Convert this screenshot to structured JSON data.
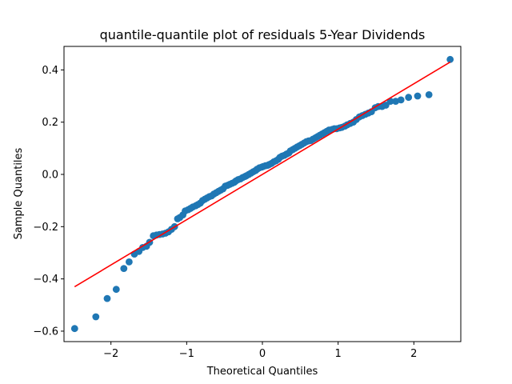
{
  "chart_data": {
    "type": "scatter",
    "title": "quantile-quantile plot of residuals 5-Year Dividends",
    "xlabel": "Theoretical Quantiles",
    "ylabel": "Sample Quantiles",
    "xlim": [
      -2.62,
      2.62
    ],
    "ylim": [
      -0.64,
      0.49
    ],
    "xticks": [
      -2,
      -1,
      0,
      1,
      2
    ],
    "xtick_labels": [
      "−2",
      "−1",
      "0",
      "1",
      "2"
    ],
    "yticks": [
      -0.6,
      -0.4,
      -0.2,
      0.0,
      0.2,
      0.4
    ],
    "ytick_labels": [
      "−0.6",
      "−0.4",
      "−0.2",
      "0.0",
      "0.2",
      "0.4"
    ],
    "grid": false,
    "colors": {
      "points": "#1f77b4",
      "line": "#ff0000"
    },
    "series": [
      {
        "kind": "points",
        "x": [
          -2.48,
          -2.2,
          -2.05,
          -1.93,
          -1.83,
          -1.76,
          -1.69,
          -1.63,
          -1.58,
          -1.53,
          -1.49,
          -1.44,
          -1.4,
          -1.36,
          -1.32,
          -1.28,
          -1.24,
          -1.2,
          -1.16,
          -1.12,
          -1.09,
          -1.05,
          -1.02,
          -0.98,
          -0.95,
          -0.92,
          -0.88,
          -0.85,
          -0.82,
          -0.79,
          -0.76,
          -0.73,
          -0.7,
          -0.67,
          -0.64,
          -0.61,
          -0.58,
          -0.55,
          -0.52,
          -0.49,
          -0.46,
          -0.43,
          -0.4,
          -0.37,
          -0.35,
          -0.32,
          -0.29,
          -0.26,
          -0.23,
          -0.21,
          -0.18,
          -0.15,
          -0.12,
          -0.09,
          -0.07,
          -0.04,
          -0.01,
          0.01,
          0.04,
          0.07,
          0.09,
          0.12,
          0.15,
          0.18,
          0.21,
          0.23,
          0.26,
          0.29,
          0.32,
          0.35,
          0.37,
          0.4,
          0.43,
          0.46,
          0.49,
          0.52,
          0.55,
          0.58,
          0.61,
          0.64,
          0.67,
          0.7,
          0.73,
          0.76,
          0.79,
          0.82,
          0.85,
          0.88,
          0.92,
          0.95,
          0.98,
          1.02,
          1.05,
          1.09,
          1.12,
          1.16,
          1.2,
          1.24,
          1.28,
          1.32,
          1.36,
          1.4,
          1.44,
          1.49,
          1.53,
          1.58,
          1.63,
          1.69,
          1.76,
          1.83,
          1.93,
          2.05,
          2.2,
          2.48
        ],
        "y": [
          -0.59,
          -0.545,
          -0.475,
          -0.44,
          -0.36,
          -0.335,
          -0.305,
          -0.295,
          -0.28,
          -0.275,
          -0.26,
          -0.235,
          -0.232,
          -0.23,
          -0.228,
          -0.225,
          -0.22,
          -0.21,
          -0.2,
          -0.17,
          -0.165,
          -0.155,
          -0.14,
          -0.135,
          -0.13,
          -0.125,
          -0.12,
          -0.115,
          -0.11,
          -0.1,
          -0.095,
          -0.09,
          -0.085,
          -0.082,
          -0.075,
          -0.07,
          -0.065,
          -0.06,
          -0.055,
          -0.045,
          -0.042,
          -0.038,
          -0.034,
          -0.03,
          -0.025,
          -0.02,
          -0.017,
          -0.012,
          -0.008,
          -0.005,
          0.0,
          0.005,
          0.01,
          0.015,
          0.02,
          0.025,
          0.028,
          0.03,
          0.033,
          0.035,
          0.038,
          0.042,
          0.048,
          0.052,
          0.058,
          0.065,
          0.07,
          0.073,
          0.078,
          0.082,
          0.09,
          0.095,
          0.1,
          0.105,
          0.11,
          0.115,
          0.12,
          0.125,
          0.128,
          0.13,
          0.135,
          0.14,
          0.145,
          0.15,
          0.155,
          0.16,
          0.165,
          0.17,
          0.172,
          0.175,
          0.175,
          0.178,
          0.18,
          0.185,
          0.19,
          0.195,
          0.2,
          0.21,
          0.22,
          0.225,
          0.23,
          0.235,
          0.24,
          0.255,
          0.26,
          0.26,
          0.265,
          0.28,
          0.28,
          0.285,
          0.295,
          0.3,
          0.305,
          0.44
        ]
      },
      {
        "kind": "line",
        "x": [
          -2.48,
          2.48
        ],
        "y": [
          -0.43,
          0.43
        ]
      }
    ]
  }
}
